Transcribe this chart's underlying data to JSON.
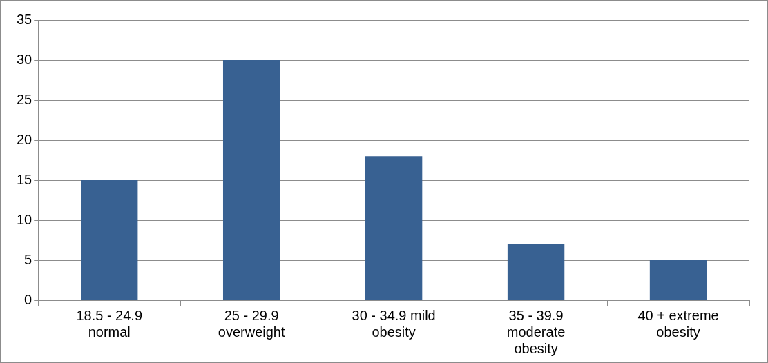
{
  "chart_data": {
    "type": "bar",
    "categories": [
      "18.5 - 24.9 normal",
      "25 - 29.9 overweight",
      "30 - 34.9 mild obesity",
      "35 - 39.9 moderate obesity",
      "40 + extreme obesity"
    ],
    "values": [
      15,
      30,
      18,
      7,
      5
    ],
    "color": "#386192",
    "ylim": [
      0,
      35
    ],
    "yticks": [
      0,
      5,
      10,
      15,
      20,
      25,
      30,
      35
    ],
    "grid": "y",
    "legend": false
  }
}
